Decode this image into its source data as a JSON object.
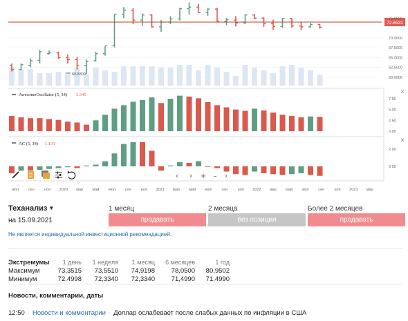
{
  "chart": {
    "price_ticks": [
      "75.0000",
      "72.6531",
      "70.0000",
      "67.5000",
      "65.0000",
      "62.5000",
      "60.0000"
    ],
    "current_price": "72.6531",
    "min_marker": "60.8300",
    "ao": {
      "title": "AwesomeOscillator (5, 34)",
      "value": "3.345",
      "ticks": [
        "7.50",
        "5.00",
        "2.50",
        "0.00"
      ]
    },
    "ac": {
      "title": "AC (5, 34)",
      "value": "-1.131",
      "ticks": [
        "2.00",
        "0.00"
      ]
    },
    "close_icon": "×",
    "time_labels": [
      "июл",
      "сен",
      "ноя",
      "2020",
      "мар",
      "май",
      "июл",
      "сен",
      "ноя",
      "2021",
      "мар",
      "май",
      "июл",
      "сен",
      "ноя",
      "2022",
      "мар",
      "май",
      "июл",
      "сен",
      "ноя",
      "2023",
      "мар"
    ],
    "toolbar_icons": [
      "pencil-icon",
      "document-icon",
      "gallery-icon",
      "sliders-icon",
      "undo-icon"
    ],
    "nav_icons": [
      "chevron-left-icon",
      "chevron-right-icon",
      "plus-icon",
      "minus-icon",
      "chevron-right-icon"
    ],
    "colors": {
      "up": "#5f9e82",
      "down": "#d9594c",
      "volume": "#dde7f3",
      "price_line": "#c0392b",
      "label_bg": "#e35c52"
    }
  },
  "tech_analysis": {
    "title": "Теханализ",
    "date": "на 15.09.2021",
    "columns": [
      {
        "header": "1 месяц",
        "signal": "продавать",
        "kind": "sell"
      },
      {
        "header": "2 месяца",
        "signal": "без позиции",
        "kind": "neutral"
      },
      {
        "header": "Более 2 месяцев",
        "signal": "продавать",
        "kind": "sell"
      }
    ],
    "disclaimer": "Не является индивидуальной инвестиционной рекомендацией."
  },
  "extremes": {
    "title": "Экстремумы",
    "periods": [
      "1 день",
      "1 неделя",
      "1 месяц",
      "6 месяцев",
      "1 год"
    ],
    "rows": [
      {
        "label": "Максимум",
        "values": [
          "73,3515",
          "73,5510",
          "74,9198",
          "78,0500",
          "80,9502"
        ]
      },
      {
        "label": "Минимум",
        "values": [
          "72,4998",
          "72,3340",
          "72,3340",
          "71,4990",
          "71,4990"
        ]
      }
    ]
  },
  "news": {
    "title": "Новости, комментарии, даты",
    "items": [
      {
        "time": "12:50",
        "category": "Новости и комментарии",
        "headline": "Доллар ослабевает после слабых данных по инфляции в США"
      }
    ]
  }
}
